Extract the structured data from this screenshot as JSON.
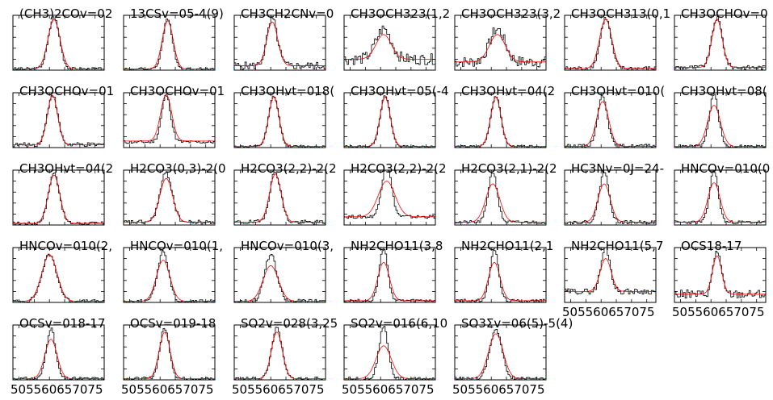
{
  "chart_data": {
    "type": "line",
    "layout": "grid of small-multiple spectral line panels, 5 rows x 7 columns",
    "x_tick_labels": [
      "50",
      "55",
      "60",
      "65",
      "70",
      "75"
    ],
    "x_tick_text": "505560657075",
    "xlim": [
      48,
      78
    ],
    "series_styles": {
      "observed": {
        "color": "#000000",
        "style": "steps"
      },
      "model": {
        "color": "#ff0000",
        "style": "line"
      }
    },
    "panels": [
      {
        "title": "(CH3)2COv=02",
        "center": 61.5,
        "width": 3.6,
        "peak": 0.95,
        "model_width": 4.0,
        "model_peak": 0.9,
        "baseline": 0.02,
        "model_baseline": 0.02,
        "noise": 0.03,
        "row": 0,
        "col": 0,
        "x_labels": false
      },
      {
        "title": "13CSv=05-4(9)",
        "center": 62.5,
        "width": 3.2,
        "peak": 0.9,
        "model_width": 3.6,
        "model_peak": 0.88,
        "baseline": 0.02,
        "model_baseline": 0.02,
        "noise": 0.03,
        "row": 0,
        "col": 1,
        "x_labels": false
      },
      {
        "title": "CH3CH2CNv=0",
        "center": 60.5,
        "width": 3.4,
        "peak": 0.85,
        "model_width": 3.6,
        "model_peak": 0.8,
        "baseline": 0.08,
        "model_baseline": 0.08,
        "noise": 0.07,
        "row": 0,
        "col": 2,
        "x_labels": false
      },
      {
        "title": "CH3OCH323(1,2",
        "center": 61.0,
        "width": 5.0,
        "peak": 0.55,
        "model_width": 5.0,
        "model_peak": 0.45,
        "baseline": 0.2,
        "model_baseline": 0.2,
        "noise": 0.1,
        "row": 0,
        "col": 3,
        "x_labels": false
      },
      {
        "title": "CH3OCH323(3,2",
        "center": 62.0,
        "width": 5.0,
        "peak": 0.6,
        "model_width": 5.2,
        "model_peak": 0.5,
        "baseline": 0.15,
        "model_baseline": 0.15,
        "noise": 0.1,
        "row": 0,
        "col": 4,
        "x_labels": false
      },
      {
        "title": "CH3OCH313(0,1",
        "center": 61.5,
        "width": 3.5,
        "peak": 0.92,
        "model_width": 4.0,
        "model_peak": 0.9,
        "baseline": 0.03,
        "model_baseline": 0.03,
        "noise": 0.04,
        "row": 0,
        "col": 5,
        "x_labels": false
      },
      {
        "title": "CH3OCHOv=0",
        "center": 62.0,
        "width": 3.4,
        "peak": 0.9,
        "model_width": 3.4,
        "model_peak": 0.88,
        "baseline": 0.05,
        "model_baseline": 0.05,
        "noise": 0.04,
        "row": 0,
        "col": 6,
        "x_labels": false
      },
      {
        "title": "CH3OCHOv=01",
        "center": 61.0,
        "width": 3.4,
        "peak": 0.92,
        "model_width": 3.4,
        "model_peak": 0.9,
        "baseline": 0.05,
        "model_baseline": 0.05,
        "noise": 0.04,
        "row": 1,
        "col": 0,
        "x_labels": false
      },
      {
        "title": "CH3OCHOv=01",
        "center": 62.0,
        "width": 3.0,
        "peak": 0.85,
        "model_width": 3.6,
        "model_peak": 0.85,
        "baseline": 0.1,
        "model_baseline": 0.12,
        "noise": 0.03,
        "row": 1,
        "col": 1,
        "x_labels": false
      },
      {
        "title": "CH3OHvt=018(",
        "center": 61.0,
        "width": 3.3,
        "peak": 0.92,
        "model_width": 3.4,
        "model_peak": 0.9,
        "baseline": 0.02,
        "model_baseline": 0.02,
        "noise": 0.02,
        "row": 1,
        "col": 2,
        "x_labels": false
      },
      {
        "title": "CH3OHvt=05(-4",
        "center": 61.5,
        "width": 3.3,
        "peak": 0.92,
        "model_width": 3.4,
        "model_peak": 0.9,
        "baseline": 0.02,
        "model_baseline": 0.02,
        "noise": 0.02,
        "row": 1,
        "col": 3,
        "x_labels": false
      },
      {
        "title": "CH3OHvt=04(2",
        "center": 61.5,
        "width": 3.3,
        "peak": 0.92,
        "model_width": 3.4,
        "model_peak": 0.9,
        "baseline": 0.02,
        "model_baseline": 0.02,
        "noise": 0.02,
        "row": 1,
        "col": 4,
        "x_labels": false
      },
      {
        "title": "CH3OHvt=010(",
        "center": 60.5,
        "width": 3.2,
        "peak": 0.92,
        "model_width": 4.0,
        "model_peak": 0.82,
        "baseline": 0.03,
        "model_baseline": 0.02,
        "noise": 0.03,
        "row": 1,
        "col": 5,
        "x_labels": false
      },
      {
        "title": "CH3OHvt=08(",
        "center": 61.0,
        "width": 3.0,
        "peak": 0.95,
        "model_width": 4.2,
        "model_peak": 0.75,
        "baseline": 0.02,
        "model_baseline": 0.02,
        "noise": 0.03,
        "row": 1,
        "col": 6,
        "x_labels": false
      },
      {
        "title": "CH3OHvt=04(2",
        "center": 61.5,
        "width": 3.6,
        "peak": 0.92,
        "model_width": 3.8,
        "model_peak": 0.88,
        "baseline": 0.03,
        "model_baseline": 0.03,
        "noise": 0.03,
        "row": 2,
        "col": 0,
        "x_labels": false
      },
      {
        "title": "H2CO3(0,3)-2(0",
        "center": 62.0,
        "width": 4.0,
        "peak": 0.9,
        "model_width": 4.2,
        "model_peak": 0.8,
        "baseline": 0.05,
        "model_baseline": 0.05,
        "noise": 0.04,
        "row": 2,
        "col": 1,
        "x_labels": false
      },
      {
        "title": "H2CO3(2,2)-2(2",
        "center": 61.5,
        "width": 3.6,
        "peak": 0.92,
        "model_width": 3.8,
        "model_peak": 0.88,
        "baseline": 0.05,
        "model_baseline": 0.05,
        "noise": 0.04,
        "row": 2,
        "col": 2,
        "x_labels": false
      },
      {
        "title": "H2CO3(2,2)-2(2",
        "center": 62.0,
        "width": 3.2,
        "peak": 0.95,
        "model_width": 5.5,
        "model_peak": 0.65,
        "baseline": 0.15,
        "model_baseline": 0.15,
        "noise": 0.03,
        "row": 2,
        "col": 3,
        "x_labels": false
      },
      {
        "title": "H2CO3(2,1)-2(2",
        "center": 60.5,
        "width": 3.0,
        "peak": 0.92,
        "model_width": 4.6,
        "model_peak": 0.7,
        "baseline": 0.05,
        "model_baseline": 0.05,
        "noise": 0.03,
        "row": 2,
        "col": 4,
        "x_labels": false
      },
      {
        "title": "HC3Nv=0J=24-",
        "center": 61.0,
        "width": 3.2,
        "peak": 0.92,
        "model_width": 4.0,
        "model_peak": 0.7,
        "baseline": 0.05,
        "model_baseline": 0.05,
        "noise": 0.03,
        "row": 2,
        "col": 5,
        "x_labels": false
      },
      {
        "title": "HNCOv=010(0",
        "center": 61.0,
        "width": 2.8,
        "peak": 0.95,
        "model_width": 4.0,
        "model_peak": 0.72,
        "baseline": 0.05,
        "model_baseline": 0.05,
        "noise": 0.03,
        "row": 2,
        "col": 6,
        "x_labels": false
      },
      {
        "title": "HNCOv=010(2,",
        "center": 60.0,
        "width": 4.8,
        "peak": 0.85,
        "model_width": 5.0,
        "model_peak": 0.85,
        "baseline": 0.02,
        "model_baseline": 0.02,
        "noise": 0.03,
        "row": 3,
        "col": 0,
        "x_labels": false
      },
      {
        "title": "HNCOv=010(1,",
        "center": 61.0,
        "width": 3.6,
        "peak": 0.92,
        "model_width": 4.4,
        "model_peak": 0.75,
        "baseline": 0.02,
        "model_baseline": 0.02,
        "noise": 0.03,
        "row": 3,
        "col": 1,
        "x_labels": false
      },
      {
        "title": "HNCOv=010(3,",
        "center": 60.0,
        "width": 4.0,
        "peak": 0.85,
        "model_width": 5.0,
        "model_peak": 0.65,
        "baseline": 0.02,
        "model_baseline": 0.02,
        "noise": 0.04,
        "row": 3,
        "col": 2,
        "x_labels": false
      },
      {
        "title": "NH2CHO11(3,8",
        "center": 61.0,
        "width": 2.8,
        "peak": 0.95,
        "model_width": 3.8,
        "model_peak": 0.7,
        "baseline": 0.03,
        "model_baseline": 0.03,
        "noise": 0.03,
        "row": 3,
        "col": 3,
        "x_labels": false
      },
      {
        "title": "NH2CHO11(2,1",
        "center": 61.0,
        "width": 2.8,
        "peak": 0.95,
        "model_width": 3.8,
        "model_peak": 0.7,
        "baseline": 0.03,
        "model_baseline": 0.03,
        "noise": 0.03,
        "row": 3,
        "col": 4,
        "x_labels": false
      },
      {
        "title": "NH2CHO11(5,7",
        "center": 61.5,
        "width": 3.0,
        "peak": 0.8,
        "model_width": 3.6,
        "model_peak": 0.6,
        "baseline": 0.2,
        "model_baseline": 0.2,
        "noise": 0.05,
        "row": 3,
        "col": 5,
        "x_labels": true
      },
      {
        "title": "OCS18-17",
        "center": 62.0,
        "width": 2.6,
        "peak": 0.8,
        "model_width": 3.0,
        "model_peak": 0.7,
        "baseline": 0.15,
        "model_baseline": 0.15,
        "noise": 0.08,
        "row": 3,
        "col": 6,
        "x_labels": true
      },
      {
        "title": "OCSv=018-17",
        "center": 60.5,
        "width": 3.0,
        "peak": 0.92,
        "model_width": 4.0,
        "model_peak": 0.72,
        "baseline": 0.02,
        "model_baseline": 0.02,
        "noise": 0.03,
        "row": 4,
        "col": 0,
        "x_labels": true
      },
      {
        "title": "OCSv=019-18",
        "center": 61.5,
        "width": 3.2,
        "peak": 0.92,
        "model_width": 3.6,
        "model_peak": 0.85,
        "baseline": 0.02,
        "model_baseline": 0.02,
        "noise": 0.03,
        "row": 4,
        "col": 1,
        "x_labels": true
      },
      {
        "title": "SO2v=028(3,25",
        "center": 62.0,
        "width": 3.4,
        "peak": 0.92,
        "model_width": 3.6,
        "model_peak": 0.85,
        "baseline": 0.02,
        "model_baseline": 0.02,
        "noise": 0.03,
        "row": 4,
        "col": 2,
        "x_labels": true
      },
      {
        "title": "SO2v=016(6,10",
        "center": 61.0,
        "width": 3.0,
        "peak": 0.95,
        "model_width": 5.0,
        "model_peak": 0.6,
        "baseline": 0.02,
        "model_baseline": 0.02,
        "noise": 0.03,
        "row": 4,
        "col": 3,
        "x_labels": true
      },
      {
        "title": "SO3&Sigma;v=06(5)-5(4)",
        "center": 61.5,
        "width": 4.0,
        "peak": 0.9,
        "model_width": 4.8,
        "model_peak": 0.82,
        "baseline": 0.02,
        "model_baseline": 0.02,
        "noise": 0.03,
        "row": 4,
        "col": 4,
        "x_labels": true
      }
    ]
  }
}
